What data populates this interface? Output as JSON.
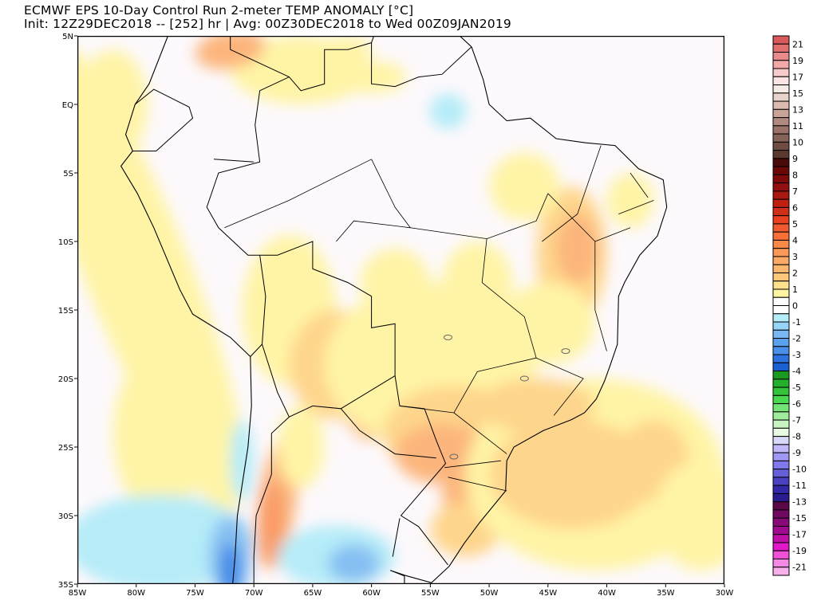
{
  "title": {
    "line1": "ECMWF EPS 10-Day Control Run 2-meter TEMP ANOMALY [°C]",
    "line2": "Init: 12Z29DEC2018 -- [252] hr | Avg: 00Z30DEC2018 to Wed 00Z09JAN2019"
  },
  "map": {
    "region": "South America / Brazil",
    "lon_range": [
      "85W",
      "30W"
    ],
    "lat_range": [
      "5N",
      "35S"
    ],
    "x_ticks": [
      "85W",
      "80W",
      "75W",
      "70W",
      "65W",
      "60W",
      "55W",
      "50W",
      "45W",
      "40W",
      "35W",
      "30W"
    ],
    "y_ticks": [
      "5N",
      "EQ",
      "5S",
      "10S",
      "15S",
      "20S",
      "25S",
      "30S",
      "35S"
    ]
  },
  "colorbar": {
    "labels": [
      "21",
      "19",
      "17",
      "15",
      "13",
      "11",
      "10",
      "9",
      "8",
      "7",
      "6",
      "5",
      "4",
      "3",
      "2",
      "1",
      "0",
      "-1",
      "-2",
      "-3",
      "-4",
      "-5",
      "-6",
      "-7",
      "-8",
      "-9",
      "-10",
      "-11",
      "-13",
      "-15",
      "-17",
      "-19",
      "-21"
    ],
    "colors": [
      "#d9585a",
      "#e06f6e",
      "#eb8a8a",
      "#f2a8a8",
      "#f8caca",
      "#fde4e4",
      "#f6ece6",
      "#e8d4ca",
      "#dcbcb0",
      "#c8a398",
      "#b08a80",
      "#9a7268",
      "#86645a",
      "#6e4c42",
      "#5a3a30",
      "#4a0a0a",
      "#6a0808",
      "#7e0a0a",
      "#941010",
      "#a81810",
      "#c02010",
      "#d03018",
      "#e84020",
      "#f05a30",
      "#f87038",
      "#fa8848",
      "#fb9a58",
      "#fcaa66",
      "#fdb870",
      "#fec87a",
      "#ffe08c",
      "#fff5a0",
      "#ffffff",
      "#ffffff",
      "#b4ecf8",
      "#96d4f8",
      "#7ab8f4",
      "#5aa2ee",
      "#4a90ea",
      "#2e72e0",
      "#1a60d0",
      "#1a9a20",
      "#24b02c",
      "#34c43c",
      "#4ad84e",
      "#74e476",
      "#a0ec9c",
      "#c8f4c4",
      "#e8fce4",
      "#d8d8f8",
      "#c0b8f8",
      "#a098f4",
      "#8078ec",
      "#6660d8",
      "#4a40c0",
      "#3228a8",
      "#2a1c90",
      "#5a0848",
      "#700a60",
      "#880a78",
      "#a00a90",
      "#c010a8",
      "#e018c8",
      "#f050d8",
      "#f48ae4",
      "#f8b0ec"
    ]
  }
}
